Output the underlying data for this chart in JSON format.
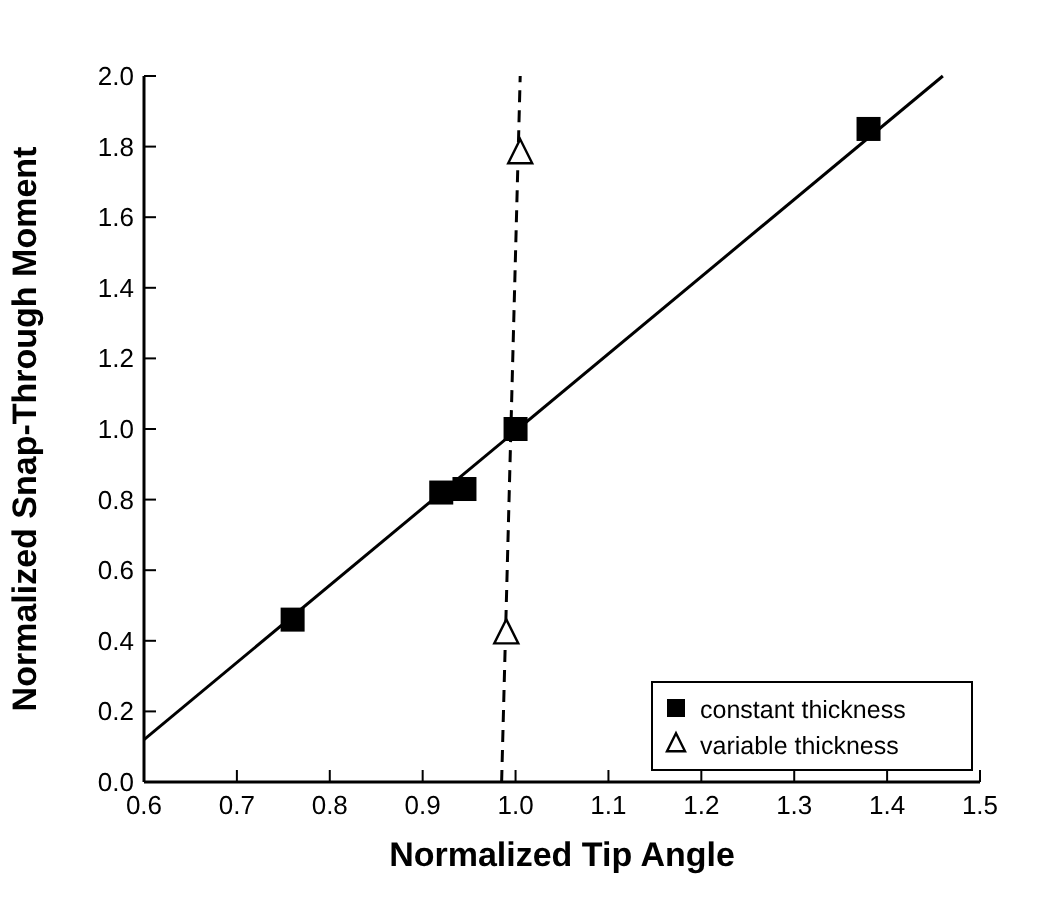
{
  "chart_data": {
    "type": "scatter",
    "xlabel": "Normalized Tip Angle",
    "ylabel": "Normalized Snap-Through Moment",
    "xlim": [
      0.6,
      1.5
    ],
    "ylim": [
      0,
      2.0
    ],
    "xticks": [
      0.6,
      0.7,
      0.8,
      0.9,
      {
        "value": 1,
        "label": "1.0"
      },
      1.1,
      1.2,
      1.3,
      1.4,
      1.5
    ],
    "yticks": [
      {
        "value": 0,
        "label": "0.0"
      },
      0.2,
      0.4,
      0.6,
      0.8,
      {
        "value": 1,
        "label": "1.0"
      },
      1.2,
      1.4,
      1.6,
      1.8,
      {
        "value": 2,
        "label": "2.0"
      }
    ],
    "legend": "bottom right",
    "grid": false,
    "series": [
      {
        "name": "constant thickness",
        "marker": "square",
        "color": "#000000",
        "x": [
          0.76,
          0.92,
          0.945,
          1.0,
          1.38
        ],
        "values": [
          0.46,
          0.82,
          0.83,
          1.0,
          1.85
        ]
      },
      {
        "name": "variable thickness",
        "marker": "triangle",
        "color": "#000000",
        "x": [
          0.99,
          1.005
        ],
        "values": [
          0.42,
          1.78
        ]
      },
      {
        "type": "line",
        "line_style": "solid",
        "color": "#000000",
        "x": [
          0.6,
          1.46
        ],
        "values": [
          0.12,
          2.0
        ]
      },
      {
        "type": "line",
        "line_style": "dashed",
        "color": "#000000",
        "x": [
          0.985,
          1.005
        ],
        "values": [
          0.0,
          2.0
        ]
      }
    ]
  }
}
